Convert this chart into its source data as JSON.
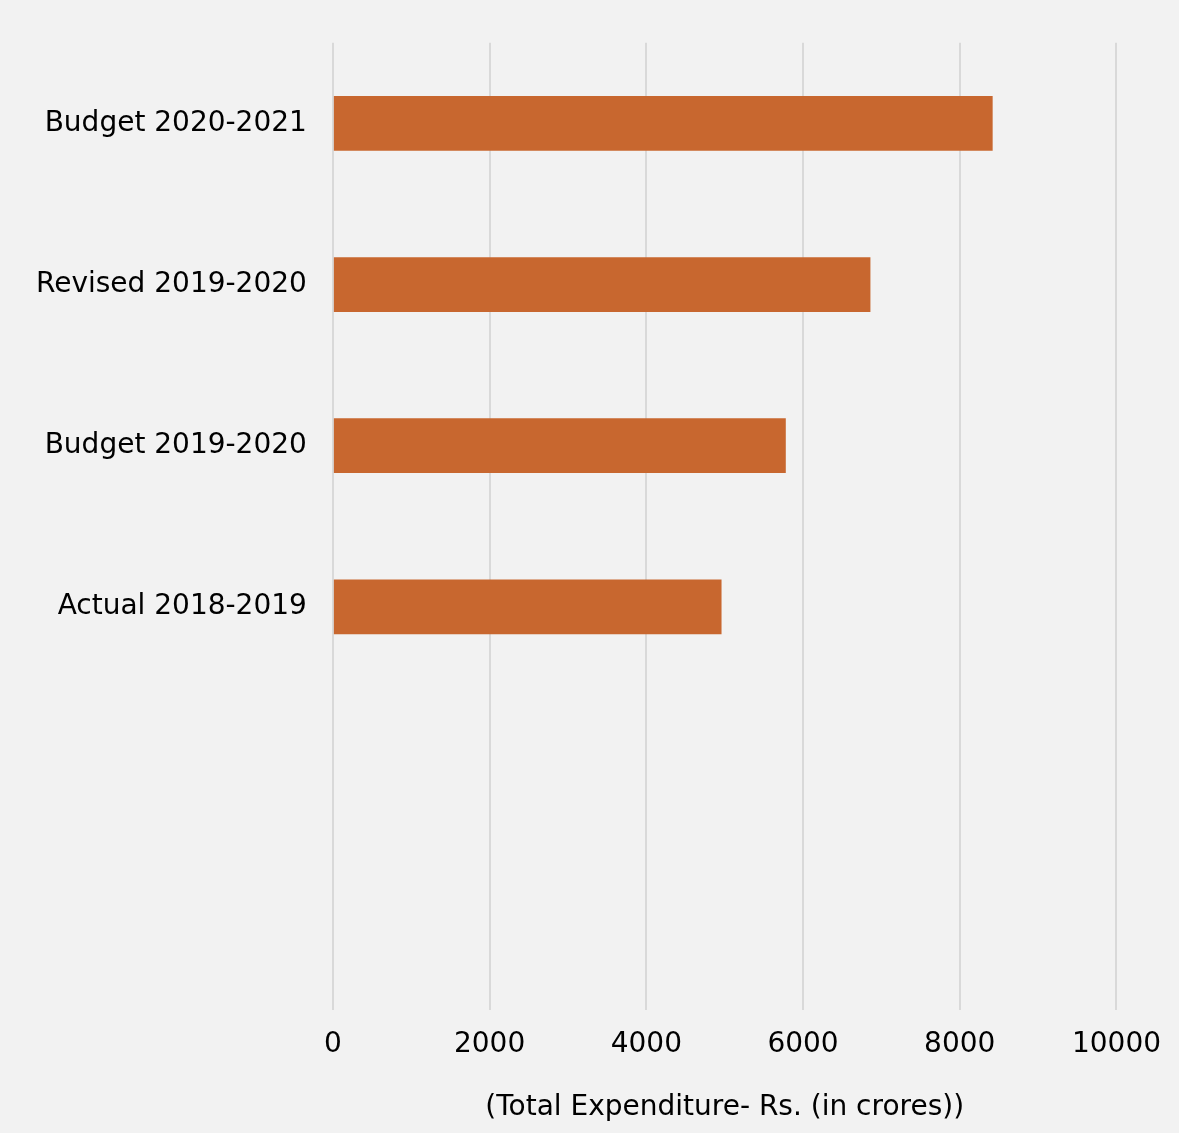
{
  "chart_data": {
    "type": "bar",
    "orientation": "horizontal",
    "categories": [
      "Budget 2020-2021",
      "Revised 2019-2020",
      "Budget 2019-2020",
      "Actual 2018-2019",
      null,
      null
    ],
    "values": [
      8420,
      6860,
      5780,
      4960,
      null,
      null
    ],
    "color": "#c8672f",
    "xlim": [
      0,
      10000
    ],
    "xticks": [
      0,
      2000,
      4000,
      6000,
      8000,
      10000
    ],
    "xlabel": "(Total Expenditure- Rs. (in crores))",
    "grid": "x",
    "legend": false
  }
}
